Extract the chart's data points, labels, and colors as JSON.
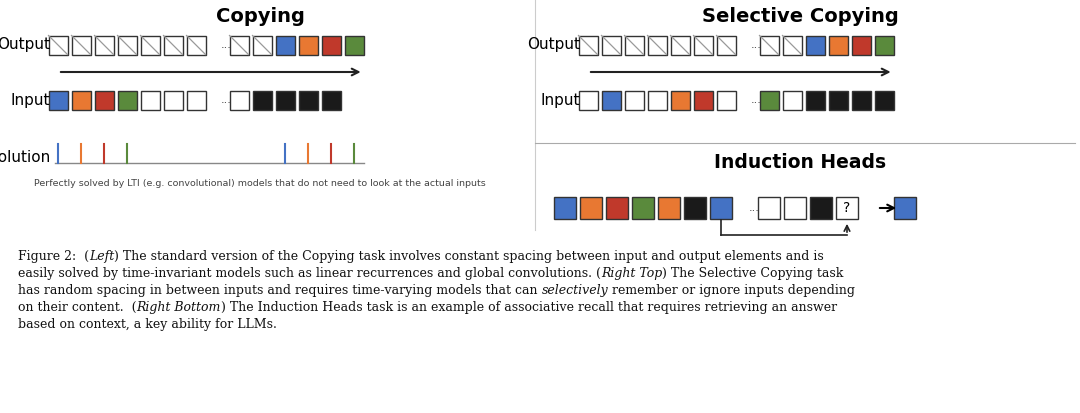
{
  "bg_color": "#ffffff",
  "colors": {
    "blue": "#4472C4",
    "orange": "#E87832",
    "red": "#C0392B",
    "green": "#5A8A3C",
    "black": "#1a1a1a",
    "white": "#ffffff",
    "gray": "#888888",
    "dark": "#222222"
  },
  "copying_title": "Copying",
  "selective_copying_title": "Selective Copying",
  "induction_heads_title": "Induction Heads",
  "lti_caption": "Perfectly solved by LTI (e.g. convolutional) models that do not need to look at the actual inputs"
}
